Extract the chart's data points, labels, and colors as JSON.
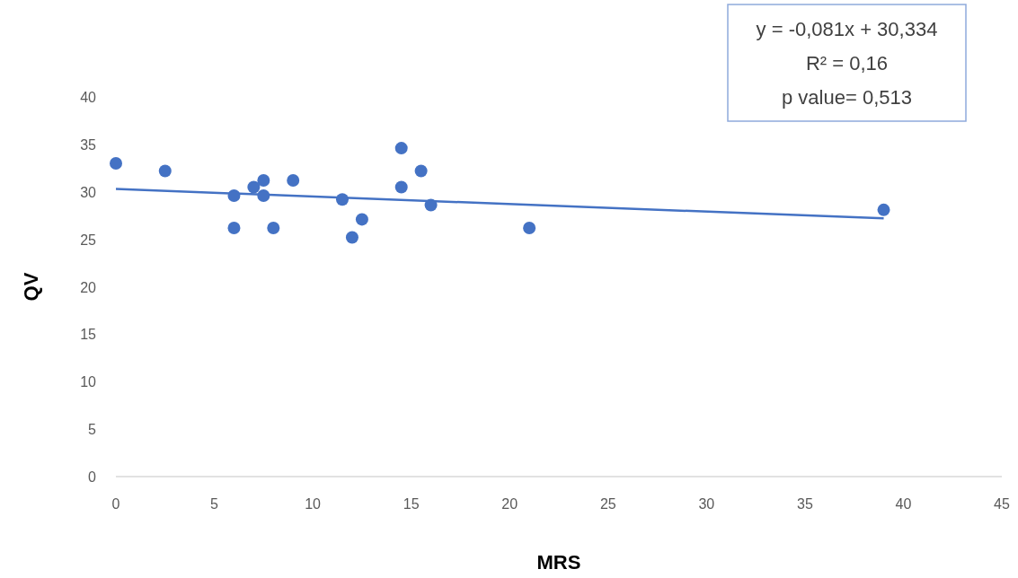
{
  "chart_data": {
    "type": "scatter",
    "xlabel": "MRS",
    "ylabel": "QV",
    "xlim": [
      0,
      45
    ],
    "ylim": [
      0,
      40
    ],
    "xticks": [
      0,
      5,
      10,
      15,
      20,
      25,
      30,
      35,
      40,
      45
    ],
    "yticks": [
      0,
      5,
      10,
      15,
      20,
      25,
      30,
      35,
      40
    ],
    "grid": false,
    "marker": "circle",
    "series": [
      {
        "color": "#4472c4",
        "x": [
          0,
          2.5,
          6,
          6,
          7,
          7.5,
          7.5,
          8,
          9,
          11.5,
          12,
          12.5,
          14.5,
          14.5,
          15.5,
          16,
          21,
          39
        ],
        "values": [
          33,
          32.2,
          29.6,
          26.2,
          30.5,
          31.2,
          29.6,
          26.2,
          31.2,
          29.2,
          25.2,
          27.1,
          34.6,
          30.5,
          32.2,
          28.6,
          26.2,
          28.1
        ]
      },
      {
        "type": "line",
        "color": "#4472c4",
        "marker": "none",
        "line_style": "solid",
        "x": [
          0,
          39
        ],
        "values": [
          30.3,
          27.2
        ]
      }
    ],
    "annotations": [
      "y = -0,081x + 30,334",
      "R² = 0,16",
      "p value= 0,513"
    ]
  }
}
